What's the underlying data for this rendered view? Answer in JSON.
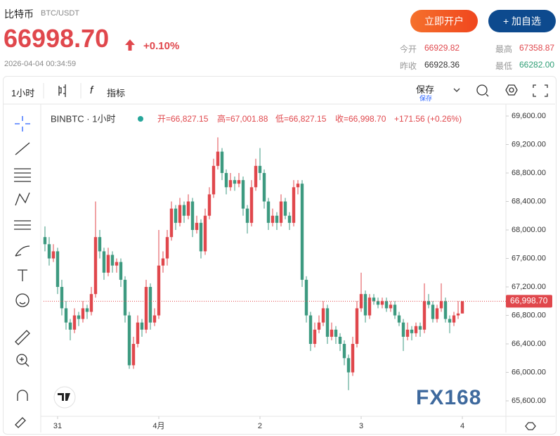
{
  "header": {
    "title": "比特币",
    "symbol": "BTC/USDT",
    "price": "66998.70",
    "change": "+0.10%",
    "time": "2026-04-04 00:34:59",
    "buttons": [
      "立即开户",
      "+ 加自选"
    ],
    "stats": [
      {
        "label": "今开",
        "value": "66929.82"
      },
      {
        "label": "最高",
        "value": "67358.87"
      },
      {
        "label": "昨收",
        "value": "66928.36"
      },
      {
        "label": "最低",
        "value": "66282.00"
      }
    ]
  },
  "toolbar": {
    "interval": "1小时",
    "indicators": "指标",
    "save": "保存",
    "save_sub": "保存"
  },
  "chart_data": {
    "type": "candlestick",
    "series_name": "BINBTC · 1小时",
    "ohlc_legend": [
      "开=66,827.15",
      "高=67,001.88",
      "低=66,827.15",
      "收=66,998.70",
      "+171.56 (+0.26%)"
    ],
    "watermark": "FX168",
    "up_color": "#e0474c",
    "down_color": "#3d9a80",
    "xlim": [
      -0.33,
      109.33
    ],
    "xticks": [
      {
        "value": 3,
        "label": "31"
      },
      {
        "value": 27,
        "label": "4月"
      },
      {
        "value": 51,
        "label": "2"
      },
      {
        "value": 75,
        "label": "3"
      },
      {
        "value": 99,
        "label": "4"
      }
    ],
    "ylim": [
      65383,
      69748
    ],
    "yticks": [
      {
        "value": 65600,
        "label": "65,600.00"
      },
      {
        "value": 66000,
        "label": "66,000.00"
      },
      {
        "value": 66400,
        "label": "66,400.00"
      },
      {
        "value": 66800,
        "label": "66,800.00"
      },
      {
        "value": 67200,
        "label": "67,200.00"
      },
      {
        "value": 67600,
        "label": "67,600.00"
      },
      {
        "value": 68000,
        "label": "68,000.00"
      },
      {
        "value": 68400,
        "label": "68,400.00"
      },
      {
        "value": 68800,
        "label": "68,800.00"
      },
      {
        "value": 69200,
        "label": "69,200.00"
      },
      {
        "value": 69600,
        "label": "69,600.00"
      }
    ],
    "last_price": {
      "value": 66998.7,
      "label": "66,998.70"
    },
    "candles": [
      [
        67900,
        68050,
        67700,
        67800
      ],
      [
        67800,
        67900,
        67500,
        67600
      ],
      [
        67600,
        67800,
        67550,
        67700
      ],
      [
        67700,
        67750,
        67100,
        67200
      ],
      [
        67200,
        67300,
        66800,
        66900
      ],
      [
        66900,
        67000,
        66600,
        66700
      ],
      [
        66700,
        66750,
        66450,
        66600
      ],
      [
        66600,
        66900,
        66550,
        66800
      ],
      [
        66800,
        66850,
        66650,
        66750
      ],
      [
        66750,
        67000,
        66700,
        66900
      ],
      [
        66900,
        66950,
        66750,
        66850
      ],
      [
        66850,
        67200,
        66800,
        67100
      ],
      [
        67100,
        68400,
        67050,
        67900
      ],
      [
        67900,
        68000,
        67600,
        67700
      ],
      [
        67700,
        67750,
        67300,
        67400
      ],
      [
        67400,
        67750,
        67350,
        67650
      ],
      [
        67650,
        67700,
        67400,
        67500
      ],
      [
        67500,
        67600,
        67400,
        67550
      ],
      [
        67550,
        67600,
        67200,
        67300
      ],
      [
        67300,
        67350,
        66700,
        66800
      ],
      [
        66800,
        66850,
        66050,
        66100
      ],
      [
        66100,
        66500,
        66050,
        66400
      ],
      [
        66400,
        66800,
        66350,
        66700
      ],
      [
        66700,
        66750,
        66500,
        66600
      ],
      [
        66600,
        67300,
        66550,
        67200
      ],
      [
        67200,
        67250,
        66600,
        66700
      ],
      [
        66700,
        66900,
        66650,
        66800
      ],
      [
        66800,
        68000,
        66750,
        67500
      ],
      [
        67500,
        67700,
        67400,
        67600
      ],
      [
        67600,
        68000,
        67500,
        67900
      ],
      [
        67900,
        68400,
        67850,
        68300
      ],
      [
        68300,
        68350,
        68000,
        68100
      ],
      [
        68100,
        68450,
        68050,
        68350
      ],
      [
        68350,
        68400,
        68100,
        68200
      ],
      [
        68200,
        68500,
        68150,
        68400
      ],
      [
        68400,
        68450,
        67900,
        68000
      ],
      [
        68000,
        68200,
        67950,
        68100
      ],
      [
        68100,
        68150,
        67600,
        67700
      ],
      [
        67700,
        68300,
        67650,
        68200
      ],
      [
        68200,
        68600,
        68150,
        68500
      ],
      [
        68500,
        69000,
        68450,
        68900
      ],
      [
        68900,
        69300,
        68850,
        69100
      ],
      [
        69100,
        69150,
        68700,
        68800
      ],
      [
        68800,
        68850,
        68500,
        68600
      ],
      [
        68600,
        68800,
        68550,
        68700
      ],
      [
        68700,
        68750,
        68550,
        68650
      ],
      [
        68650,
        68800,
        68600,
        68700
      ],
      [
        68700,
        68750,
        68200,
        68300
      ],
      [
        68300,
        68350,
        67950,
        68100
      ],
      [
        68100,
        68700,
        68050,
        68600
      ],
      [
        68600,
        69000,
        68550,
        68900
      ],
      [
        68900,
        69150,
        68700,
        68800
      ],
      [
        68800,
        68850,
        68300,
        68400
      ],
      [
        68400,
        68450,
        68000,
        68100
      ],
      [
        68100,
        68300,
        68050,
        68200
      ],
      [
        68200,
        68250,
        68000,
        68100
      ],
      [
        68100,
        68500,
        68050,
        68400
      ],
      [
        68400,
        68450,
        68150,
        68200
      ],
      [
        68200,
        68250,
        68000,
        68100
      ],
      [
        68100,
        68700,
        68050,
        68600
      ],
      [
        68600,
        68700,
        68500,
        68650
      ],
      [
        68650,
        68700,
        67200,
        67300
      ],
      [
        67300,
        67350,
        66700,
        66800
      ],
      [
        66800,
        66850,
        66300,
        66400
      ],
      [
        66400,
        66700,
        66350,
        66600
      ],
      [
        66600,
        66800,
        66550,
        66700
      ],
      [
        66700,
        67000,
        66650,
        66900
      ],
      [
        66900,
        66950,
        66400,
        66500
      ],
      [
        66500,
        66700,
        66450,
        66600
      ],
      [
        66600,
        66650,
        66400,
        66500
      ],
      [
        66500,
        66550,
        66300,
        66400
      ],
      [
        66400,
        66450,
        66100,
        66200
      ],
      [
        66200,
        66250,
        65750,
        66000
      ],
      [
        66000,
        66500,
        65950,
        66400
      ],
      [
        66400,
        67000,
        66350,
        66900
      ],
      [
        66900,
        67400,
        66850,
        67100
      ],
      [
        67100,
        67150,
        66700,
        66800
      ],
      [
        66800,
        67100,
        66750,
        67050
      ],
      [
        67050,
        67100,
        66950,
        67000
      ],
      [
        67000,
        67050,
        66900,
        66950
      ],
      [
        66950,
        67050,
        66900,
        67000
      ],
      [
        67000,
        67050,
        66850,
        66900
      ],
      [
        66900,
        67000,
        66850,
        66950
      ],
      [
        66950,
        67000,
        66750,
        66800
      ],
      [
        66800,
        66850,
        66650,
        66700
      ],
      [
        66700,
        66750,
        66300,
        66500
      ],
      [
        66500,
        66700,
        66450,
        66600
      ],
      [
        66600,
        66650,
        66450,
        66550
      ],
      [
        66550,
        66700,
        66500,
        66650
      ],
      [
        66650,
        66700,
        66500,
        66600
      ],
      [
        66600,
        67250,
        66550,
        67000
      ],
      [
        67000,
        67100,
        66900,
        66950
      ],
      [
        66950,
        67000,
        66700,
        66750
      ],
      [
        66750,
        66950,
        66700,
        66900
      ],
      [
        66900,
        67250,
        66850,
        67000
      ],
      [
        67000,
        67050,
        66700,
        66750
      ],
      [
        66750,
        66800,
        66550,
        66700
      ],
      [
        66700,
        66850,
        66650,
        66800
      ],
      [
        66800,
        67000,
        66750,
        66827.15
      ],
      [
        66827.15,
        67001.88,
        66827.15,
        66998.7
      ]
    ]
  }
}
